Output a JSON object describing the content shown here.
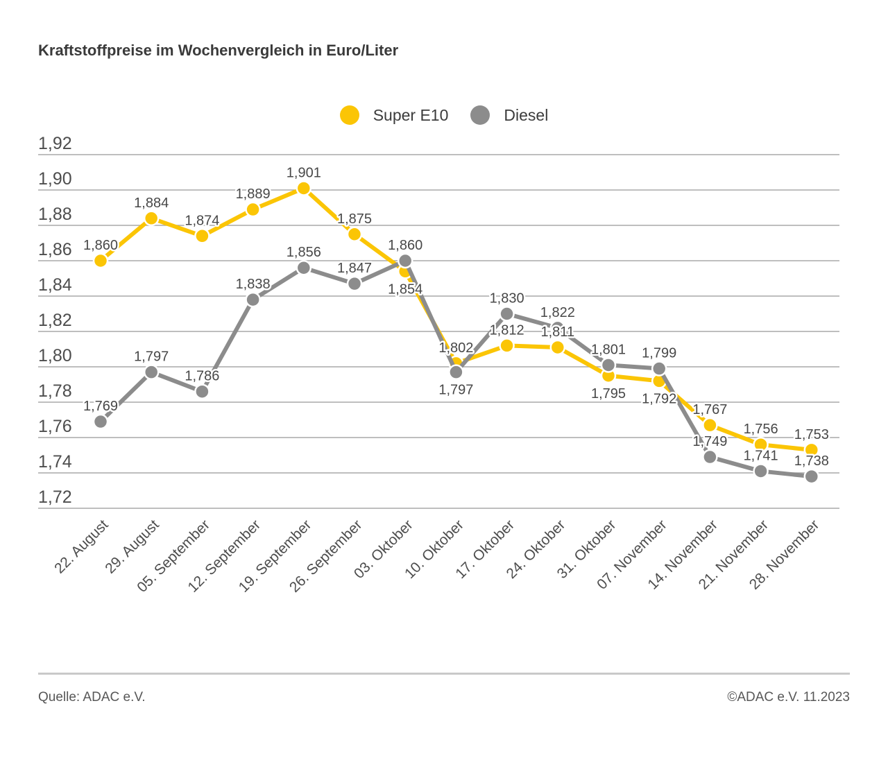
{
  "title": "Kraftstoffpreise im Wochenvergleich in Euro/Liter",
  "legend": {
    "items": [
      {
        "label": "Super E10",
        "color": "#FBC505"
      },
      {
        "label": "Diesel",
        "color": "#8C8C8C"
      }
    ]
  },
  "footer": {
    "source": "Quelle: ADAC e.V.",
    "copyright": "©ADAC e.V. 11.2023"
  },
  "chart_data": {
    "type": "line",
    "title": "Kraftstoffpreise im Wochenvergleich in Euro/Liter",
    "unit": "Euro/Liter",
    "categories": [
      "22. August",
      "29. August",
      "05. September",
      "12. September",
      "19. September",
      "26. September",
      "03. Oktober",
      "10. Oktober",
      "17. Oktober",
      "24. Oktober",
      "31. Oktober",
      "07. November",
      "14. November",
      "21. November",
      "28. November"
    ],
    "series": [
      {
        "name": "Super E10",
        "color": "#FBC505",
        "values": [
          1.86,
          1.884,
          1.874,
          1.889,
          1.901,
          1.875,
          1.854,
          1.802,
          1.812,
          1.811,
          1.795,
          1.792,
          1.767,
          1.756,
          1.753
        ],
        "labels": [
          "1,860",
          "1,884",
          "1,874",
          "1,889",
          "1,901",
          "1,875",
          "1,854",
          "1,802",
          "1,812",
          "1,811",
          "1,795",
          "1,792",
          "1,767",
          "1,756",
          "1,753"
        ],
        "label_positions": [
          "above",
          "above",
          "above",
          "above",
          "above",
          "above",
          "below",
          "above",
          "above",
          "above",
          "below",
          "below",
          "above",
          "above",
          "above"
        ]
      },
      {
        "name": "Diesel",
        "color": "#8C8C8C",
        "values": [
          1.769,
          1.797,
          1.786,
          1.838,
          1.856,
          1.847,
          1.86,
          1.797,
          1.83,
          1.822,
          1.801,
          1.799,
          1.749,
          1.741,
          1.738
        ],
        "labels": [
          "1,769",
          "1,797",
          "1,786",
          "1,838",
          "1,856",
          "1,847",
          "1,860",
          "1,797",
          "1,830",
          "1,822",
          "1,801",
          "1,799",
          "1,749",
          "1,741",
          "1,738"
        ],
        "label_positions": [
          "above",
          "above",
          "above",
          "above",
          "above",
          "above",
          "above",
          "below",
          "above",
          "above",
          "above",
          "above",
          "above",
          "above",
          "above"
        ]
      }
    ],
    "ylim": [
      1.72,
      1.92
    ],
    "ytick_step": 0.02,
    "ytick_labels": [
      "1,92",
      "1,90",
      "1,88",
      "1,86",
      "1,84",
      "1,82",
      "1,80",
      "1,78",
      "1,76",
      "1,74",
      "1,72"
    ],
    "grid": "horizontal-only",
    "legend_position": "top-center",
    "styles": {
      "grid_color": "#a8a8a8",
      "tick_text_color": "#4d4d4d",
      "value_label_color": "#474747",
      "x_label_color": "#4d4d4d",
      "marker_ring_color": "#ffffff"
    }
  }
}
